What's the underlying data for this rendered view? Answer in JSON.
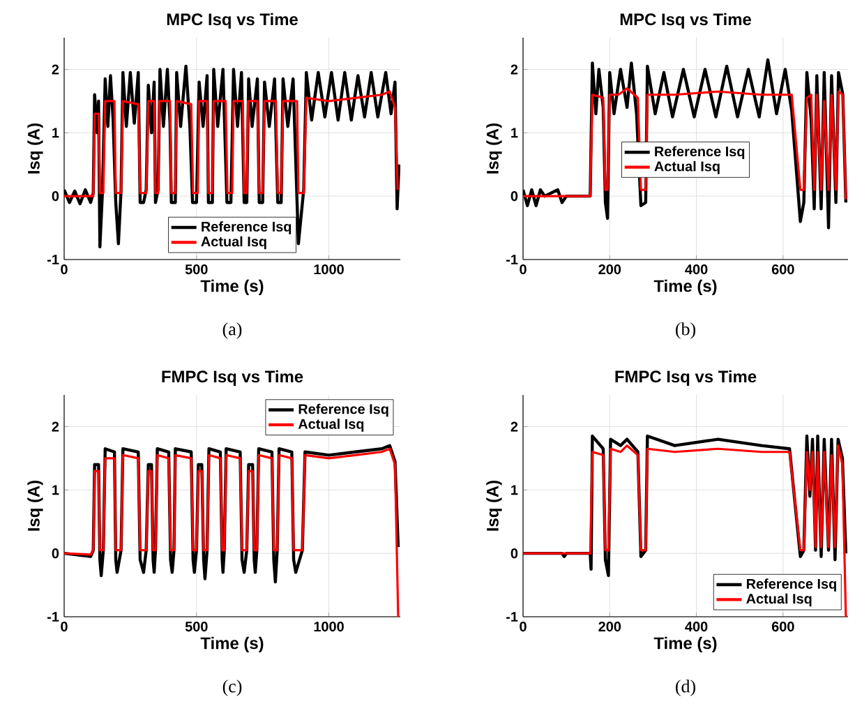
{
  "chart_data": [
    {
      "type": "line",
      "title": "MPC Isq vs Time",
      "xlabel": "Time (s)",
      "ylabel": "Isq (A)",
      "xlim": [
        0,
        1270
      ],
      "ylim": [
        -1,
        2.5
      ],
      "xticks": [
        0,
        500,
        1000
      ],
      "yticks": [
        -1,
        0,
        1,
        2
      ],
      "grid": true,
      "legend": "bottom",
      "annotations": [
        "(a)"
      ],
      "series": [
        {
          "name": "Reference Isq",
          "color": "#000000",
          "x": [
            0,
            20,
            40,
            60,
            80,
            100,
            110,
            115,
            125,
            130,
            135,
            145,
            155,
            165,
            175,
            185,
            195,
            205,
            215,
            222,
            235,
            250,
            265,
            280,
            287,
            300,
            310,
            318,
            330,
            340,
            345,
            355,
            362,
            375,
            390,
            400,
            405,
            420,
            425,
            440,
            460,
            475,
            485,
            500,
            510,
            525,
            540,
            545,
            560,
            565,
            580,
            600,
            615,
            630,
            640,
            655,
            670,
            680,
            690,
            697,
            710,
            730,
            737,
            750,
            757,
            775,
            795,
            807,
            820,
            827,
            845,
            865,
            880,
            885,
            905,
            915,
            935,
            960,
            985,
            1010,
            1035,
            1060,
            1085,
            1110,
            1135,
            1160,
            1185,
            1215,
            1235,
            1250,
            1258,
            1265
          ],
          "values": [
            0.1,
            -0.1,
            0.08,
            -0.12,
            0.1,
            -0.1,
            0.05,
            1.6,
            1.0,
            1.5,
            -0.8,
            0.1,
            1.85,
            1.1,
            1.9,
            1.2,
            -0.1,
            -0.75,
            0.1,
            1.95,
            1.1,
            1.95,
            1.15,
            1.95,
            -0.1,
            -0.1,
            0.1,
            1.75,
            1.0,
            1.8,
            -0.1,
            0.1,
            2.0,
            1.1,
            2.0,
            1.15,
            -0.1,
            -0.1,
            1.95,
            1.1,
            2.05,
            1.1,
            -0.1,
            -0.1,
            1.8,
            1.1,
            1.9,
            -0.1,
            -0.1,
            2.0,
            1.1,
            2.0,
            -0.1,
            -0.1,
            2.0,
            1.1,
            1.95,
            -0.1,
            -0.1,
            1.85,
            1.1,
            1.85,
            -0.1,
            -0.1,
            1.8,
            1.1,
            1.85,
            -0.1,
            -0.1,
            1.85,
            1.1,
            1.85,
            -0.1,
            -0.75,
            0.1,
            1.95,
            1.2,
            1.95,
            1.25,
            1.95,
            1.2,
            1.95,
            1.2,
            1.9,
            1.25,
            1.95,
            1.25,
            1.95,
            1.3,
            1.8,
            -0.2,
            0.5
          ]
        },
        {
          "name": "Actual Isq",
          "color": "#ff0000",
          "x": [
            0,
            110,
            115,
            130,
            135,
            148,
            155,
            190,
            195,
            215,
            222,
            280,
            287,
            310,
            318,
            340,
            345,
            355,
            360,
            400,
            405,
            420,
            425,
            480,
            487,
            505,
            510,
            540,
            545,
            560,
            565,
            610,
            617,
            635,
            640,
            675,
            680,
            690,
            695,
            730,
            737,
            750,
            757,
            800,
            807,
            820,
            827,
            880,
            885,
            905,
            915,
            1000,
            1100,
            1200,
            1230,
            1250,
            1260
          ],
          "values": [
            0,
            0,
            1.3,
            1.3,
            0.05,
            0.05,
            1.5,
            1.5,
            0.05,
            0.05,
            1.5,
            1.45,
            0.05,
            0.05,
            1.5,
            1.5,
            0.05,
            0.05,
            1.5,
            1.5,
            0.05,
            0.05,
            1.5,
            1.45,
            0.05,
            0.05,
            1.5,
            1.5,
            0.05,
            0.05,
            1.5,
            1.5,
            0.05,
            0.05,
            1.5,
            1.5,
            0.05,
            0.05,
            1.5,
            1.5,
            0.05,
            0.05,
            1.5,
            1.5,
            0.05,
            0.05,
            1.5,
            1.5,
            0.05,
            0.05,
            1.55,
            1.5,
            1.55,
            1.6,
            1.65,
            1.4,
            0.1
          ]
        }
      ]
    },
    {
      "type": "line",
      "title": "MPC Isq vs Time",
      "xlabel": "Time (s)",
      "ylabel": "Isq (A)",
      "xlim": [
        0,
        750
      ],
      "ylim": [
        -1,
        2.5
      ],
      "xticks": [
        0,
        200,
        400,
        600
      ],
      "yticks": [
        -1,
        0,
        1,
        2
      ],
      "grid": true,
      "legend": "center",
      "annotations": [
        "(b)"
      ],
      "series": [
        {
          "name": "Reference Isq",
          "color": "#000000",
          "x": [
            0,
            10,
            20,
            30,
            40,
            50,
            80,
            90,
            100,
            155,
            160,
            168,
            175,
            185,
            190,
            195,
            200,
            210,
            225,
            240,
            250,
            262,
            272,
            283,
            287,
            305,
            325,
            345,
            370,
            395,
            420,
            445,
            470,
            495,
            520,
            545,
            565,
            585,
            605,
            620,
            640,
            648,
            655,
            665,
            672,
            678,
            688,
            695,
            705,
            712,
            722,
            728,
            738,
            745
          ],
          "values": [
            0.1,
            -0.15,
            0.1,
            -0.15,
            0.1,
            0,
            0.1,
            -0.1,
            0,
            0,
            2.1,
            1.3,
            2.0,
            1.4,
            -0.1,
            -0.35,
            1.95,
            1.3,
            2.0,
            1.4,
            2.1,
            1.3,
            -0.15,
            -0.1,
            2.05,
            1.3,
            1.95,
            1.25,
            2.0,
            1.25,
            2.0,
            1.25,
            2.05,
            1.25,
            2.0,
            1.25,
            2.15,
            1.3,
            2.0,
            1.35,
            -0.4,
            -0.1,
            1.95,
            1.2,
            -0.2,
            1.9,
            -0.2,
            1.95,
            -0.5,
            1.9,
            -0.1,
            1.95,
            1.6,
            -0.1
          ]
        },
        {
          "name": "Actual Isq",
          "color": "#ff0000",
          "x": [
            0,
            155,
            160,
            185,
            190,
            195,
            200,
            220,
            240,
            265,
            272,
            283,
            287,
            350,
            450,
            550,
            620,
            640,
            648,
            655,
            665,
            672,
            678,
            688,
            695,
            705,
            712,
            722,
            728,
            738,
            745
          ],
          "values": [
            0,
            0,
            1.6,
            1.55,
            0.1,
            0.1,
            1.6,
            1.6,
            1.7,
            1.55,
            0.1,
            0.1,
            1.6,
            1.6,
            1.65,
            1.6,
            1.6,
            0.1,
            0.1,
            1.55,
            1.6,
            0.1,
            1.6,
            0.1,
            1.5,
            0.1,
            1.6,
            0.1,
            1.65,
            1.6,
            -0.05
          ]
        }
      ]
    },
    {
      "type": "line",
      "title": "FMPC Isq vs Time",
      "xlabel": "Time (s)",
      "ylabel": "Isq (A)",
      "xlim": [
        0,
        1270
      ],
      "ylim": [
        -1,
        2.5
      ],
      "xticks": [
        0,
        500,
        1000
      ],
      "yticks": [
        -1,
        0,
        1,
        2
      ],
      "grid": true,
      "legend": "top right",
      "annotations": [
        "(c)"
      ],
      "series": [
        {
          "name": "Reference Isq",
          "color": "#000000",
          "x": [
            0,
            100,
            110,
            115,
            130,
            135,
            140,
            148,
            155,
            190,
            195,
            200,
            215,
            222,
            280,
            287,
            300,
            310,
            318,
            330,
            336,
            340,
            345,
            352,
            395,
            402,
            408,
            415,
            420,
            480,
            487,
            492,
            500,
            507,
            520,
            527,
            532,
            540,
            547,
            590,
            597,
            600,
            605,
            612,
            665,
            672,
            680,
            690,
            697,
            712,
            718,
            722,
            728,
            735,
            785,
            792,
            798,
            805,
            812,
            860,
            867,
            875,
            900,
            910,
            1000,
            1100,
            1200,
            1230,
            1250,
            1262
          ],
          "values": [
            0,
            -0.05,
            0.05,
            1.4,
            1.4,
            -0.1,
            -0.35,
            0.05,
            1.65,
            1.6,
            -0.1,
            -0.3,
            0.05,
            1.65,
            1.6,
            -0.1,
            -0.3,
            0.05,
            1.4,
            1.4,
            -0.1,
            -0.3,
            0.05,
            1.65,
            1.6,
            -0.1,
            -0.3,
            0.05,
            1.65,
            1.6,
            -0.1,
            -0.3,
            0.05,
            1.4,
            1.4,
            -0.1,
            -0.4,
            0.05,
            1.65,
            1.6,
            -0.1,
            -0.3,
            0.05,
            1.65,
            1.6,
            -0.1,
            -0.3,
            0.05,
            1.4,
            1.4,
            -0.1,
            -0.3,
            0.05,
            1.65,
            1.6,
            -0.1,
            -0.45,
            0.05,
            1.65,
            1.6,
            -0.1,
            -0.3,
            0.05,
            1.6,
            1.55,
            1.6,
            1.65,
            1.7,
            1.45,
            0.1
          ]
        },
        {
          "name": "Actual Isq",
          "color": "#ff0000",
          "x": [
            0,
            100,
            110,
            115,
            130,
            135,
            148,
            155,
            190,
            195,
            215,
            222,
            280,
            287,
            310,
            318,
            330,
            336,
            345,
            352,
            395,
            402,
            415,
            420,
            480,
            487,
            500,
            507,
            520,
            527,
            540,
            547,
            590,
            597,
            605,
            612,
            665,
            672,
            690,
            697,
            712,
            718,
            728,
            735,
            785,
            792,
            805,
            812,
            860,
            867,
            900,
            910,
            1000,
            1100,
            1200,
            1230,
            1250,
            1262
          ],
          "values": [
            0,
            -0.02,
            0.05,
            1.3,
            1.3,
            0.05,
            0.05,
            1.5,
            1.5,
            0.05,
            0.05,
            1.55,
            1.5,
            0.05,
            0.05,
            1.3,
            1.3,
            0.05,
            0.05,
            1.55,
            1.5,
            0.05,
            0.05,
            1.55,
            1.5,
            0.05,
            0.05,
            1.3,
            1.3,
            0.05,
            0.05,
            1.55,
            1.5,
            0.05,
            0.05,
            1.55,
            1.5,
            0.05,
            0.05,
            1.3,
            1.3,
            0.05,
            0.05,
            1.55,
            1.5,
            0.05,
            0.05,
            1.55,
            1.5,
            0.05,
            0.05,
            1.55,
            1.5,
            1.55,
            1.6,
            1.65,
            1.4,
            -1
          ]
        }
      ]
    },
    {
      "type": "line",
      "title": "FMPC Isq vs Time",
      "xlabel": "Time (s)",
      "ylabel": "Isq (A)",
      "xlim": [
        0,
        750
      ],
      "ylim": [
        -1,
        2.5
      ],
      "xticks": [
        0,
        200,
        400,
        600
      ],
      "yticks": [
        -1,
        0,
        1,
        2
      ],
      "grid": true,
      "legend": "bottom right",
      "annotations": [
        "(d)"
      ],
      "series": [
        {
          "name": "Reference Isq",
          "color": "#000000",
          "x": [
            0,
            90,
            95,
            100,
            155,
            157,
            160,
            185,
            190,
            197,
            202,
            225,
            240,
            265,
            272,
            283,
            287,
            350,
            450,
            550,
            615,
            640,
            648,
            655,
            662,
            668,
            675,
            680,
            688,
            695,
            705,
            712,
            720,
            727,
            737,
            745
          ],
          "values": [
            0,
            0,
            -0.05,
            0,
            0,
            -0.25,
            1.85,
            1.65,
            -0.1,
            -0.35,
            1.8,
            1.7,
            1.8,
            1.6,
            -0.05,
            0.05,
            1.85,
            1.7,
            1.8,
            1.7,
            1.65,
            -0.05,
            0.05,
            1.85,
            0.9,
            1.8,
            0.05,
            1.85,
            -0.05,
            1.8,
            0.05,
            1.8,
            -0.1,
            1.8,
            1.5,
            0
          ]
        },
        {
          "name": "Actual Isq",
          "color": "#ff0000",
          "x": [
            0,
            155,
            160,
            185,
            190,
            197,
            202,
            225,
            240,
            265,
            272,
            283,
            287,
            350,
            450,
            550,
            615,
            640,
            648,
            655,
            662,
            668,
            675,
            680,
            688,
            695,
            705,
            712,
            720,
            727,
            737,
            745
          ],
          "values": [
            0,
            0,
            1.6,
            1.55,
            0.05,
            0.05,
            1.65,
            1.6,
            1.7,
            1.55,
            0.05,
            0.05,
            1.65,
            1.6,
            1.65,
            1.6,
            1.6,
            0.05,
            0.05,
            1.6,
            1.0,
            1.6,
            0.1,
            1.6,
            0.1,
            1.6,
            0.1,
            1.55,
            0.1,
            1.7,
            1.4,
            -1
          ]
        }
      ]
    }
  ]
}
